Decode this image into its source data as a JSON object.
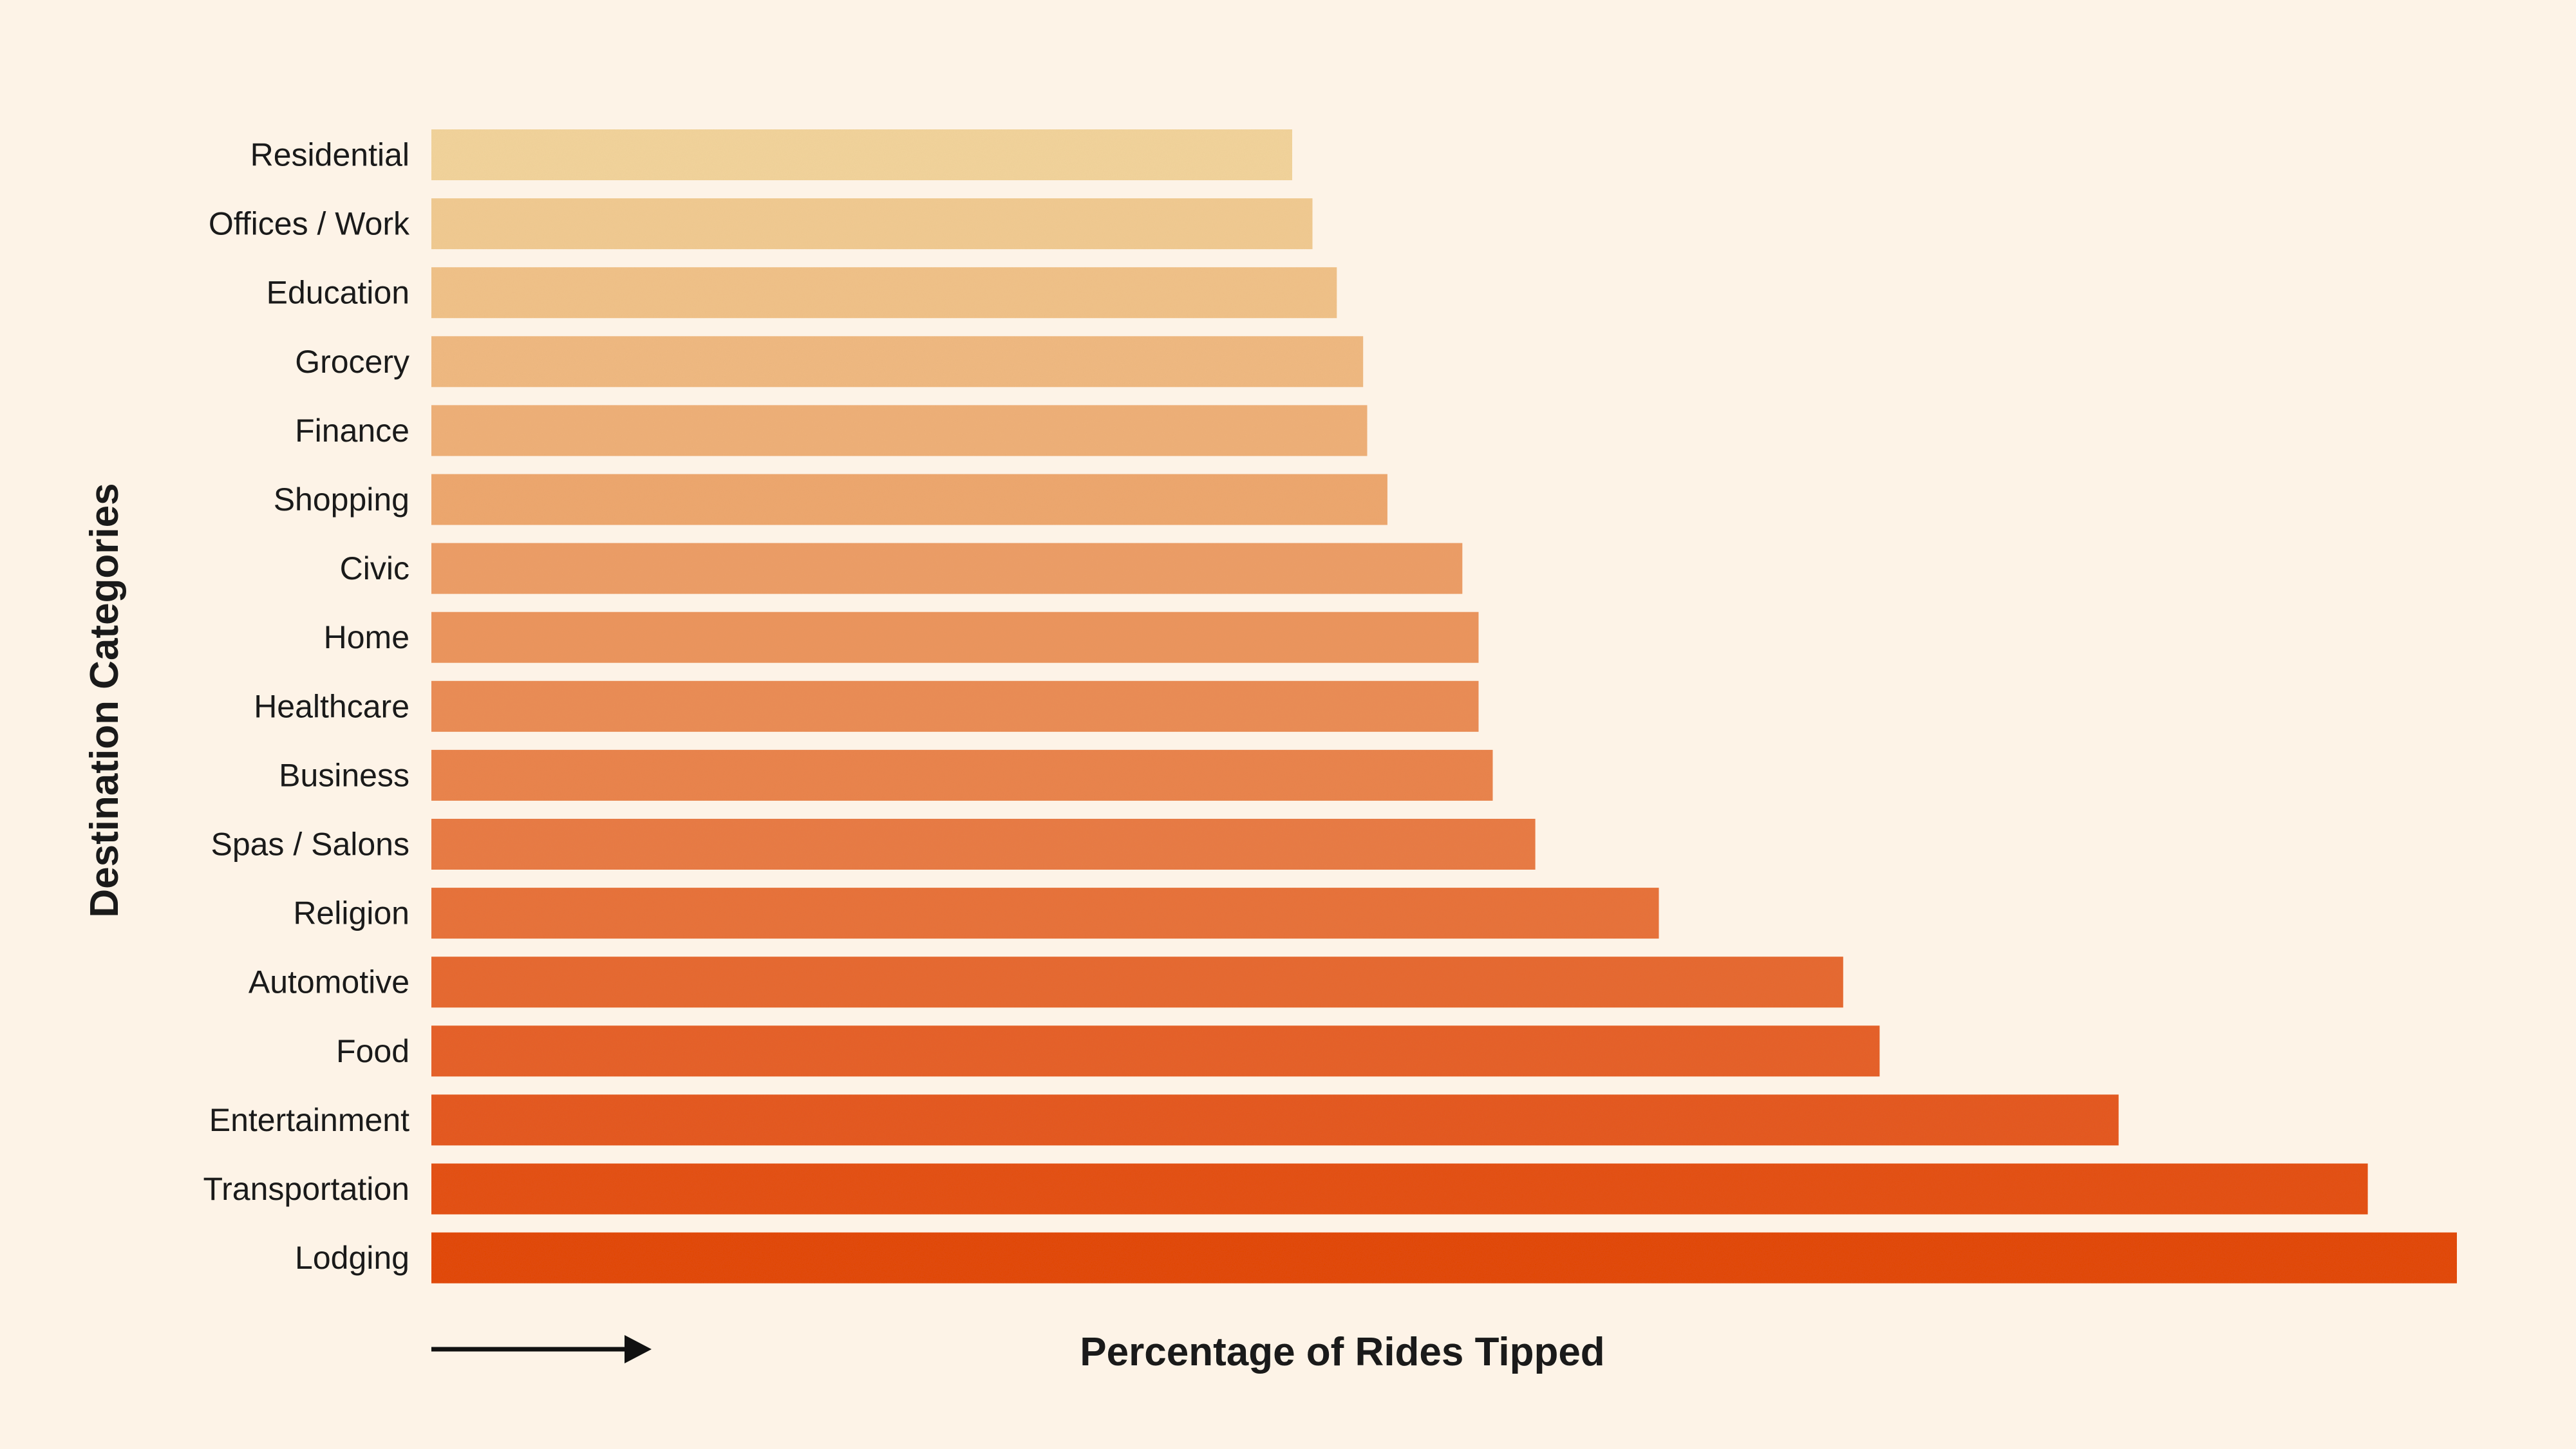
{
  "chart_data": {
    "type": "bar",
    "orientation": "horizontal",
    "categories": [
      "Residential",
      "Offices / Work",
      "Education",
      "Grocery",
      "Finance",
      "Shopping",
      "Civic",
      "Home",
      "Healthcare",
      "Business",
      "Spas / Salons",
      "Religion",
      "Automotive",
      "Food",
      "Entertainment",
      "Transportation",
      "Lodging"
    ],
    "values": [
      42.5,
      43.5,
      44.7,
      46.0,
      46.2,
      47.2,
      50.9,
      51.7,
      51.7,
      52.4,
      54.5,
      60.6,
      69.7,
      71.5,
      83.3,
      95.6,
      100
    ],
    "xlabel": "Percentage of Rides Tipped",
    "ylabel": "Destination Categories",
    "xlim": [
      0,
      100
    ],
    "grid": false,
    "axis_arrow": true,
    "color_gradient": [
      "#f2d49c",
      "#e2440f"
    ]
  }
}
